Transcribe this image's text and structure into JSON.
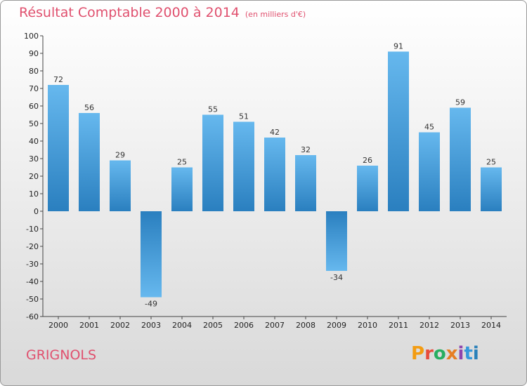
{
  "title": "Résultat Comptable 2000 à 2014",
  "subtitle": "(en milliers d'€)",
  "commune": "GRIGNOLS",
  "logo": {
    "text": "Proxiti",
    "colors": [
      "#f39c12",
      "#e74c3c",
      "#27ae60",
      "#e67e22",
      "#8e44ad",
      "#3498db",
      "#2980b9"
    ]
  },
  "colors": {
    "bar_light": "#64b5ec",
    "bar_dark": "#2b80c0",
    "accent": "#e0506e"
  },
  "chart_data": {
    "type": "bar",
    "title": "Résultat Comptable 2000 à 2014",
    "xlabel": "",
    "ylabel": "",
    "ylim": [
      -60,
      100
    ],
    "yticks": [
      100,
      90,
      80,
      70,
      60,
      50,
      40,
      30,
      20,
      10,
      0,
      -10,
      -20,
      -30,
      -40,
      -50,
      -60
    ],
    "grid": false,
    "categories": [
      "2000",
      "2001",
      "2002",
      "2003",
      "2004",
      "2005",
      "2006",
      "2007",
      "2008",
      "2009",
      "2010",
      "2011",
      "2012",
      "2013",
      "2014"
    ],
    "values": [
      72,
      56,
      29,
      -49,
      25,
      55,
      51,
      42,
      32,
      -34,
      26,
      91,
      45,
      59,
      25
    ]
  }
}
